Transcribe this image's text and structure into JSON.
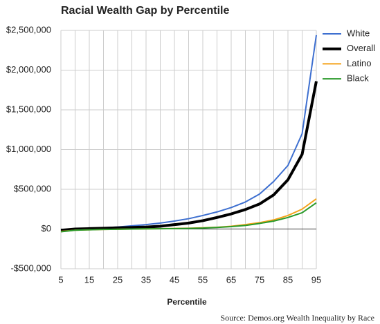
{
  "chart_data": {
    "type": "line",
    "title": "Racial Wealth Gap by Percentile",
    "x_label": "Percentile",
    "source": "Source: Demos.org Wealth Inequality by Race",
    "x": [
      5,
      10,
      15,
      20,
      25,
      30,
      35,
      40,
      45,
      50,
      55,
      60,
      65,
      70,
      75,
      80,
      85,
      90,
      95
    ],
    "xlim": [
      5,
      95
    ],
    "xticks": [
      5,
      15,
      25,
      35,
      45,
      55,
      65,
      75,
      85,
      95
    ],
    "ylim": [
      -500000,
      2500000
    ],
    "yticks": [
      {
        "value": -500000,
        "label": "-$500,000"
      },
      {
        "value": 0,
        "label": "$0"
      },
      {
        "value": 500000,
        "label": "$500,000"
      },
      {
        "value": 1000000,
        "label": "$1,000,000"
      },
      {
        "value": 1500000,
        "label": "$1,500,000"
      },
      {
        "value": 2000000,
        "label": "$2,000,000"
      },
      {
        "value": 2500000,
        "label": "$2,500,000"
      }
    ],
    "grid": true,
    "legend": "right",
    "series": [
      {
        "name": "White",
        "color": "#3d6fd0",
        "width": 2,
        "values": [
          -15000,
          0,
          5000,
          15000,
          25000,
          40000,
          55000,
          75000,
          100000,
          130000,
          170000,
          215000,
          270000,
          340000,
          440000,
          600000,
          800000,
          1200000,
          2440000
        ]
      },
      {
        "name": "Overall",
        "color": "#000000",
        "width": 4,
        "values": [
          -15000,
          0,
          5000,
          10000,
          15000,
          20000,
          25000,
          35000,
          55000,
          75000,
          105000,
          145000,
          190000,
          245000,
          315000,
          430000,
          620000,
          940000,
          1860000
        ]
      },
      {
        "name": "Latino",
        "color": "#f5a31a",
        "width": 2,
        "values": [
          -30000,
          -15000,
          -10000,
          -5000,
          -3000,
          0,
          2000,
          4000,
          7000,
          10000,
          15000,
          22000,
          35000,
          55000,
          80000,
          115000,
          170000,
          250000,
          380000
        ]
      },
      {
        "name": "Black",
        "color": "#2a9a2a",
        "width": 2,
        "values": [
          -35000,
          -15000,
          -10000,
          -5000,
          -3000,
          0,
          2000,
          3000,
          5000,
          8000,
          12000,
          20000,
          30000,
          45000,
          70000,
          100000,
          145000,
          205000,
          330000
        ]
      }
    ]
  }
}
